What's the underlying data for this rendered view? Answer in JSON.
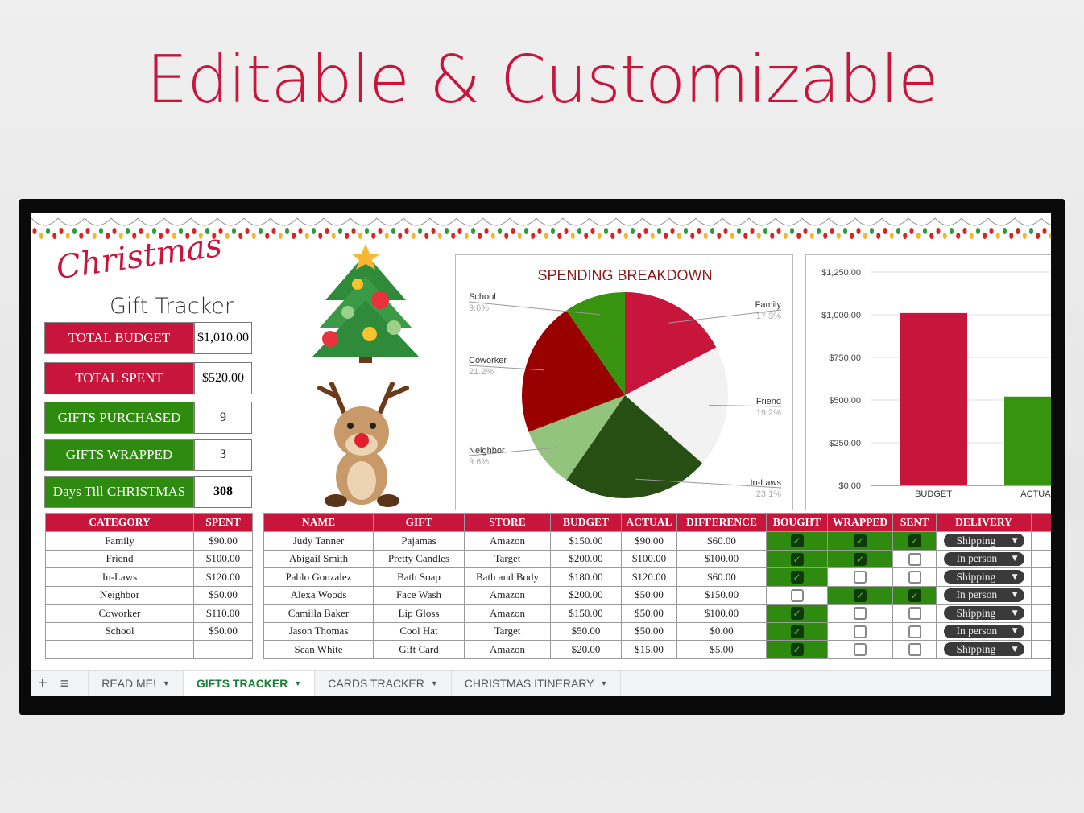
{
  "headline": "Editable & Customizable",
  "logo": {
    "script": "Christmas",
    "sub": "Gift Tracker"
  },
  "stats": [
    {
      "label": "TOTAL BUDGET",
      "value": "$1,010.00",
      "color": "#c8153c"
    },
    {
      "label": "TOTAL SPENT",
      "value": "$520.00",
      "color": "#c8153c"
    },
    {
      "label": "GIFTS PURCHASED",
      "value": "9",
      "color": "#2e8b10"
    },
    {
      "label": "GIFTS WRAPPED",
      "value": "3",
      "color": "#2e8b10"
    },
    {
      "label": "Days Till CHRISTMAS",
      "value": "308",
      "color": "#2e8b10"
    }
  ],
  "category_table": {
    "headers": [
      "CATEGORY",
      "SPENT"
    ],
    "rows": [
      [
        "Family",
        "$90.00"
      ],
      [
        "Friend",
        "$100.00"
      ],
      [
        "In-Laws",
        "$120.00"
      ],
      [
        "Neighbor",
        "$50.00"
      ],
      [
        "Coworker",
        "$110.00"
      ],
      [
        "School",
        "$50.00"
      ],
      [
        "",
        ""
      ]
    ]
  },
  "gift_table": {
    "headers": [
      "NAME",
      "GIFT",
      "STORE",
      "BUDGET",
      "ACTUAL",
      "DIFFERENCE",
      "BOUGHT",
      "WRAPPED",
      "SENT",
      "DELIVERY"
    ],
    "rows": [
      {
        "name": "Judy Tanner",
        "gift": "Pajamas",
        "store": "Amazon",
        "budget": "$150.00",
        "actual": "$90.00",
        "difference": "$60.00",
        "bought": true,
        "wrapped": true,
        "sent": true,
        "delivery": "Shipping"
      },
      {
        "name": "Abigail Smith",
        "gift": "Pretty Candles",
        "store": "Target",
        "budget": "$200.00",
        "actual": "$100.00",
        "difference": "$100.00",
        "bought": true,
        "wrapped": true,
        "sent": false,
        "delivery": "In person"
      },
      {
        "name": "Pablo Gonzalez",
        "gift": "Bath Soap",
        "store": "Bath and Body",
        "budget": "$180.00",
        "actual": "$120.00",
        "difference": "$60.00",
        "bought": true,
        "wrapped": false,
        "sent": false,
        "delivery": "Shipping"
      },
      {
        "name": "Alexa Woods",
        "gift": "Face Wash",
        "store": "Amazon",
        "budget": "$200.00",
        "actual": "$50.00",
        "difference": "$150.00",
        "bought": false,
        "wrapped": true,
        "sent": true,
        "delivery": "In person"
      },
      {
        "name": "Camilla Baker",
        "gift": "Lip Gloss",
        "store": "Amazon",
        "budget": "$150.00",
        "actual": "$50.00",
        "difference": "$100.00",
        "bought": true,
        "wrapped": false,
        "sent": false,
        "delivery": "Shipping"
      },
      {
        "name": "Jason Thomas",
        "gift": "Cool Hat",
        "store": "Target",
        "budget": "$50.00",
        "actual": "$50.00",
        "difference": "$0.00",
        "bought": true,
        "wrapped": false,
        "sent": false,
        "delivery": "In person"
      },
      {
        "name": "Sean White",
        "gift": "Gift Card",
        "store": "Amazon",
        "budget": "$20.00",
        "actual": "$15.00",
        "difference": "$5.00",
        "bought": true,
        "wrapped": false,
        "sent": false,
        "delivery": "Shipping"
      }
    ]
  },
  "tabs": [
    {
      "label": "READ ME!",
      "active": false
    },
    {
      "label": "GIFTS TRACKER",
      "active": true
    },
    {
      "label": "CARDS TRACKER",
      "active": false
    },
    {
      "label": "CHRISTMAS ITINERARY",
      "active": false
    }
  ],
  "chart_data": [
    {
      "type": "pie",
      "title": "SPENDING BREAKDOWN",
      "slices": [
        {
          "label": "Family",
          "percent_label": "17.3%",
          "value": 17.3,
          "color": "#c8153c"
        },
        {
          "label": "Friend",
          "percent_label": "19.2%",
          "value": 19.2,
          "color": "#f2f2f2"
        },
        {
          "label": "In-Laws",
          "percent_label": "23.1%",
          "value": 23.1,
          "color": "#274e13"
        },
        {
          "label": "Neighbor",
          "percent_label": "9.6%",
          "value": 9.6,
          "color": "#93c47d"
        },
        {
          "label": "Coworker",
          "percent_label": "21.2%",
          "value": 21.2,
          "color": "#990000"
        },
        {
          "label": "School",
          "percent_label": "9.6%",
          "value": 9.6,
          "color": "#38930f"
        }
      ]
    },
    {
      "type": "bar",
      "categories": [
        "BUDGET",
        "ACTUAL"
      ],
      "values": [
        1010,
        520
      ],
      "colors": [
        "#c8153c",
        "#38930f"
      ],
      "ylim": [
        0,
        1250
      ],
      "yticks": [
        "$0.00",
        "$250.00",
        "$500.00",
        "$750.00",
        "$1,000.00",
        "$1,250.00"
      ],
      "grid": true
    }
  ]
}
